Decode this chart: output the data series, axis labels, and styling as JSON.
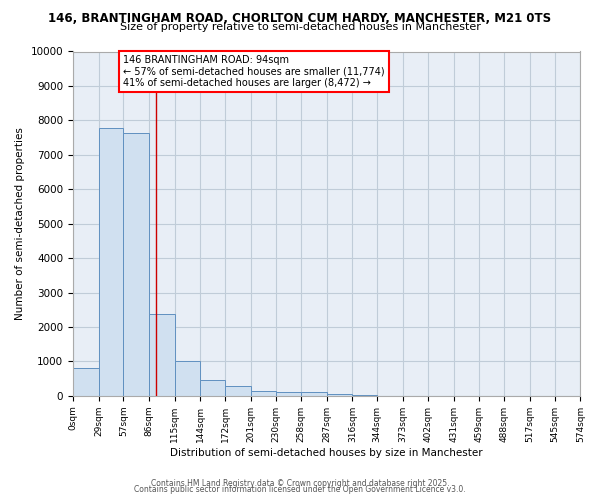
{
  "title_line1": "146, BRANTINGHAM ROAD, CHORLTON CUM HARDY, MANCHESTER, M21 0TS",
  "title_line2": "Size of property relative to semi-detached houses in Manchester",
  "xlabel": "Distribution of semi-detached houses by size in Manchester",
  "ylabel": "Number of semi-detached properties",
  "annotation_title": "146 BRANTINGHAM ROAD: 94sqm",
  "annotation_line2": "← 57% of semi-detached houses are smaller (11,774)",
  "annotation_line3": "41% of semi-detached houses are larger (8,472) →",
  "property_size": 94,
  "bin_edges": [
    0,
    29,
    57,
    86,
    115,
    144,
    172,
    201,
    230,
    258,
    287,
    316,
    344,
    373,
    402,
    431,
    459,
    488,
    517,
    545,
    574
  ],
  "bin_labels": [
    "0sqm",
    "29sqm",
    "57sqm",
    "86sqm",
    "115sqm",
    "144sqm",
    "172sqm",
    "201sqm",
    "230sqm",
    "258sqm",
    "287sqm",
    "316sqm",
    "344sqm",
    "373sqm",
    "402sqm",
    "431sqm",
    "459sqm",
    "488sqm",
    "517sqm",
    "545sqm",
    "574sqm"
  ],
  "counts": [
    800,
    7780,
    7620,
    2370,
    1020,
    450,
    295,
    155,
    115,
    105,
    65,
    20,
    5,
    0,
    0,
    0,
    0,
    0,
    0,
    0
  ],
  "bar_facecolor": "#d0e0f0",
  "bar_edgecolor": "#6090c0",
  "vline_color": "#cc0000",
  "grid_color": "#c0ccd8",
  "bg_color": "#e8eef6",
  "ylim": [
    0,
    10000
  ],
  "yticks": [
    0,
    1000,
    2000,
    3000,
    4000,
    5000,
    6000,
    7000,
    8000,
    9000,
    10000
  ],
  "footnote1": "Contains HM Land Registry data © Crown copyright and database right 2025.",
  "footnote2": "Contains public sector information licensed under the Open Government Licence v3.0."
}
